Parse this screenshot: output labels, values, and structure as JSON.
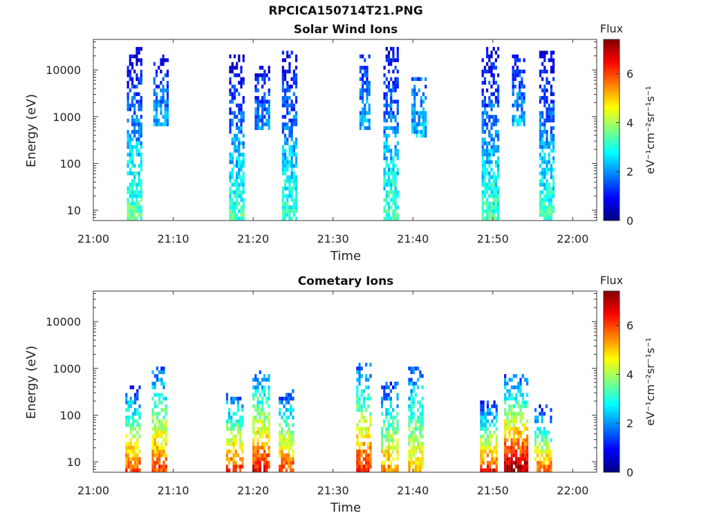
{
  "figure": {
    "file_title": "RPCICA150714T21.PNG"
  },
  "colorbar": {
    "label": "Flux",
    "unit_label": "eV⁻¹cm⁻²sr⁻¹s⁻¹",
    "ticks": [
      "0",
      "2",
      "4",
      "6"
    ],
    "range": [
      0,
      7.4
    ],
    "colormap": [
      "#00007f",
      "#0000ff",
      "#007fff",
      "#00ffff",
      "#7fff7f",
      "#ffff00",
      "#ff7f00",
      "#ff0000",
      "#7f0000"
    ]
  },
  "chart_data": [
    {
      "type": "heatmap",
      "title": "Solar Wind Ions",
      "xlabel": "Time",
      "ylabel": "Energy (eV)",
      "x_ticks": [
        "21:00",
        "21:10",
        "21:20",
        "21:30",
        "21:40",
        "21:50",
        "22:00"
      ],
      "x_tick_minutes": [
        0,
        10,
        20,
        30,
        40,
        50,
        60
      ],
      "xlim_minutes": [
        0,
        63
      ],
      "y_ticks": [
        "10",
        "100",
        "1000",
        "10000"
      ],
      "y_tick_values": [
        10,
        100,
        1000,
        10000
      ],
      "ylim": [
        6,
        45000
      ],
      "y_scale": "log",
      "grid": false,
      "bursts": [
        {
          "start_min": 4.2,
          "end_min": 6.1,
          "energy_low_eV": 6,
          "energy_high_eV": 30000,
          "low_flux": 3.5,
          "high_flux": 0.6
        },
        {
          "start_min": 7.5,
          "end_min": 9.3,
          "energy_low_eV": 600,
          "energy_high_eV": 20000,
          "low_flux": 2.2,
          "high_flux": 0.8
        },
        {
          "start_min": 17.0,
          "end_min": 18.8,
          "energy_low_eV": 6,
          "energy_high_eV": 20000,
          "low_flux": 3.3,
          "high_flux": 0.6
        },
        {
          "start_min": 20.2,
          "end_min": 22.0,
          "energy_low_eV": 500,
          "energy_high_eV": 12000,
          "low_flux": 2.0,
          "high_flux": 0.8
        },
        {
          "start_min": 23.6,
          "end_min": 25.5,
          "energy_low_eV": 6,
          "energy_high_eV": 25000,
          "low_flux": 3.3,
          "high_flux": 0.6
        },
        {
          "start_min": 33.3,
          "end_min": 34.6,
          "energy_low_eV": 500,
          "energy_high_eV": 20000,
          "low_flux": 2.3,
          "high_flux": 1.0
        },
        {
          "start_min": 36.3,
          "end_min": 38.2,
          "energy_low_eV": 6,
          "energy_high_eV": 30000,
          "low_flux": 3.3,
          "high_flux": 0.6
        },
        {
          "start_min": 39.8,
          "end_min": 41.5,
          "energy_low_eV": 400,
          "energy_high_eV": 6000,
          "low_flux": 2.3,
          "high_flux": 1.5
        },
        {
          "start_min": 48.6,
          "end_min": 50.6,
          "energy_low_eV": 6,
          "energy_high_eV": 30000,
          "low_flux": 3.3,
          "high_flux": 0.6
        },
        {
          "start_min": 52.4,
          "end_min": 54.0,
          "energy_low_eV": 600,
          "energy_high_eV": 20000,
          "low_flux": 2.2,
          "high_flux": 0.9
        },
        {
          "start_min": 55.8,
          "end_min": 57.6,
          "energy_low_eV": 6,
          "energy_high_eV": 25000,
          "low_flux": 3.3,
          "high_flux": 0.6
        }
      ]
    },
    {
      "type": "heatmap",
      "title": "Cometary Ions",
      "xlabel": "Time",
      "ylabel": "Energy (eV)",
      "x_ticks": [
        "21:00",
        "21:10",
        "21:20",
        "21:30",
        "21:40",
        "21:50",
        "22:00"
      ],
      "x_tick_minutes": [
        0,
        10,
        20,
        30,
        40,
        50,
        60
      ],
      "xlim_minutes": [
        0,
        63
      ],
      "y_ticks": [
        "10",
        "100",
        "1000",
        "10000"
      ],
      "y_tick_values": [
        10,
        100,
        1000,
        10000
      ],
      "ylim": [
        6,
        45000
      ],
      "y_scale": "log",
      "grid": false,
      "bursts": [
        {
          "start_min": 4.0,
          "end_min": 5.8,
          "energy_low_eV": 6,
          "energy_high_eV": 400,
          "low_flux": 6.0,
          "high_flux": 1.2
        },
        {
          "start_min": 7.3,
          "end_min": 9.0,
          "energy_low_eV": 6,
          "energy_high_eV": 1000,
          "low_flux": 6.0,
          "high_flux": 1.5
        },
        {
          "start_min": 16.6,
          "end_min": 18.6,
          "energy_low_eV": 6,
          "energy_high_eV": 250,
          "low_flux": 6.2,
          "high_flux": 1.5
        },
        {
          "start_min": 19.9,
          "end_min": 21.9,
          "energy_low_eV": 6,
          "energy_high_eV": 900,
          "low_flux": 6.5,
          "high_flux": 1.5
        },
        {
          "start_min": 23.2,
          "end_min": 25.0,
          "energy_low_eV": 6,
          "energy_high_eV": 300,
          "low_flux": 6.0,
          "high_flux": 1.2
        },
        {
          "start_min": 32.9,
          "end_min": 34.8,
          "energy_low_eV": 6,
          "energy_high_eV": 1200,
          "low_flux": 6.3,
          "high_flux": 1.5
        },
        {
          "start_min": 36.0,
          "end_min": 38.0,
          "energy_low_eV": 6,
          "energy_high_eV": 500,
          "low_flux": 5.5,
          "high_flux": 1.2
        },
        {
          "start_min": 39.4,
          "end_min": 41.1,
          "energy_low_eV": 6,
          "energy_high_eV": 1000,
          "low_flux": 5.0,
          "high_flux": 1.5
        },
        {
          "start_min": 48.4,
          "end_min": 50.6,
          "energy_low_eV": 6,
          "energy_high_eV": 200,
          "low_flux": 6.3,
          "high_flux": 1.0
        },
        {
          "start_min": 51.4,
          "end_min": 54.2,
          "energy_low_eV": 6,
          "energy_high_eV": 700,
          "low_flux": 7.2,
          "high_flux": 1.5
        },
        {
          "start_min": 55.2,
          "end_min": 57.4,
          "energy_low_eV": 6,
          "energy_high_eV": 150,
          "low_flux": 5.8,
          "high_flux": 1.0
        }
      ]
    }
  ]
}
